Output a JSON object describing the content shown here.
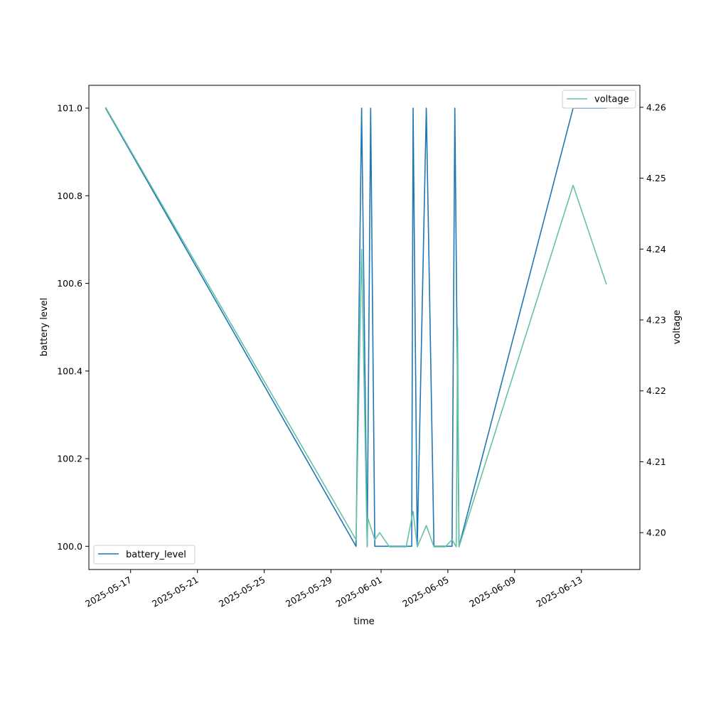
{
  "chart_data": {
    "type": "line",
    "xlabel": "time",
    "ylabel": "battery level",
    "ylabel_right": "voltage",
    "x_ticks": [
      "2025-05-17",
      "2025-05-21",
      "2025-05-25",
      "2025-05-29",
      "2025-06-01",
      "2025-06-05",
      "2025-06-09",
      "2025-06-13"
    ],
    "x_range": [
      "2025-05-14T12:00",
      "2025-06-16T12:00"
    ],
    "ylim_left": [
      99.947,
      101.052
    ],
    "yticks_left": [
      "100.0",
      "100.2",
      "100.4",
      "100.6",
      "100.8",
      "101.0"
    ],
    "ylim_right": [
      4.1948,
      4.2631
    ],
    "yticks_right": [
      "4.20",
      "4.21",
      "4.22",
      "4.23",
      "4.24",
      "4.25",
      "4.26"
    ],
    "grid": false,
    "series": [
      {
        "name": "battery_level",
        "axis": "left",
        "color": "#1f77b4",
        "legend_position": "lower-left",
        "points": [
          [
            "2025-05-15T12:00",
            101.0
          ],
          [
            "2025-05-30T12:00",
            100.0
          ],
          [
            "2025-05-30T20:00",
            101.0
          ],
          [
            "2025-05-31T04:00",
            100.0
          ],
          [
            "2025-05-31T09:00",
            101.0
          ],
          [
            "2025-05-31T15:00",
            100.0
          ],
          [
            "2025-06-01T12:00",
            100.0
          ],
          [
            "2025-06-02T20:00",
            100.0
          ],
          [
            "2025-06-02T22:00",
            101.0
          ],
          [
            "2025-06-03T04:00",
            100.0
          ],
          [
            "2025-06-03T17:00",
            101.0
          ],
          [
            "2025-06-04T04:00",
            100.0
          ],
          [
            "2025-06-05T06:00",
            100.0
          ],
          [
            "2025-06-05T10:00",
            101.0
          ],
          [
            "2025-06-05T16:00",
            100.0
          ],
          [
            "2025-06-12T12:00",
            101.0
          ],
          [
            "2025-06-14T12:00",
            101.0
          ]
        ]
      },
      {
        "name": "voltage",
        "axis": "right",
        "color": "#66c2a5",
        "legend_position": "upper-right",
        "points": [
          [
            "2025-05-15T12:00",
            4.26
          ],
          [
            "2025-05-30T12:00",
            4.199
          ],
          [
            "2025-05-30T20:00",
            4.24
          ],
          [
            "2025-05-31T04:00",
            4.198
          ],
          [
            "2025-05-31T05:00",
            4.202
          ],
          [
            "2025-05-31T15:00",
            4.199
          ],
          [
            "2025-05-31T22:00",
            4.2
          ],
          [
            "2025-06-01T12:00",
            4.198
          ],
          [
            "2025-06-02T12:00",
            4.198
          ],
          [
            "2025-06-02T22:00",
            4.203
          ],
          [
            "2025-06-03T04:00",
            4.198
          ],
          [
            "2025-06-03T17:00",
            4.201
          ],
          [
            "2025-06-04T04:00",
            4.198
          ],
          [
            "2025-06-04T20:00",
            4.198
          ],
          [
            "2025-06-05T06:00",
            4.199
          ],
          [
            "2025-06-05T12:00",
            4.198
          ],
          [
            "2025-06-05T14:00",
            4.229
          ],
          [
            "2025-06-05T16:00",
            4.198
          ],
          [
            "2025-06-12T12:00",
            4.249
          ],
          [
            "2025-06-14T12:00",
            4.235
          ]
        ]
      }
    ]
  }
}
